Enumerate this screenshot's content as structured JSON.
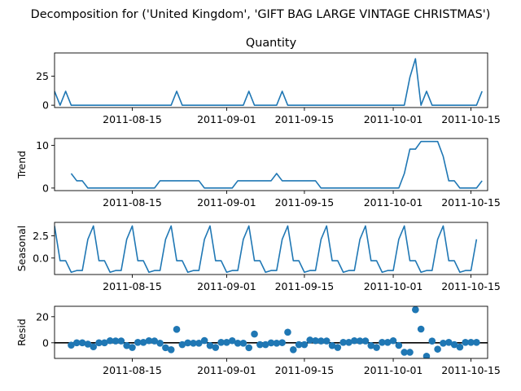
{
  "figure_title": "Decomposition for ('United Kingdom', 'GIFT BAG LARGE VINTAGE CHRISTMAS')",
  "colors": {
    "series": "#1f77b4",
    "axis": "#000000",
    "zero_line": "#000000"
  },
  "chart_data": [
    {
      "id": "observed",
      "type": "line",
      "title": "Quantity",
      "ylabel": "",
      "x_start": "2011-08-01",
      "xlim": [
        "2011-08-01",
        "2011-10-18"
      ],
      "ylim": [
        -2,
        45
      ],
      "yticks": [
        0,
        25
      ],
      "ytick_labels": [
        "0",
        "25"
      ],
      "xtick_labels": [
        "2011-08-15",
        "2011-09-01",
        "2011-09-15",
        "2011-10-01",
        "2011-10-15"
      ],
      "xtick_dates": [
        "2011-08-15",
        "2011-09-01",
        "2011-09-15",
        "2011-10-01",
        "2011-10-15"
      ],
      "values": [
        12,
        0,
        12,
        0,
        0,
        0,
        0,
        0,
        0,
        0,
        0,
        0,
        0,
        0,
        0,
        0,
        0,
        0,
        0,
        0,
        0,
        0,
        12,
        0,
        0,
        0,
        0,
        0,
        0,
        0,
        0,
        0,
        0,
        0,
        0,
        12,
        0,
        0,
        0,
        0,
        0,
        12,
        0,
        0,
        0,
        0,
        0,
        0,
        0,
        0,
        0,
        0,
        0,
        0,
        0,
        0,
        0,
        0,
        0,
        0,
        0,
        0,
        0,
        0,
        24,
        40,
        0,
        12,
        0,
        0,
        0,
        0,
        0,
        0,
        0,
        0,
        0,
        12
      ]
    },
    {
      "id": "trend",
      "type": "line",
      "title": "",
      "ylabel": "Trend",
      "x_start": "2011-08-01",
      "xlim": [
        "2011-08-01",
        "2011-10-18"
      ],
      "ylim": [
        -0.6,
        11.6
      ],
      "yticks": [
        0,
        10
      ],
      "ytick_labels": [
        "0",
        "10"
      ],
      "xtick_labels": [
        "2011-08-15",
        "2011-09-01",
        "2011-09-15",
        "2011-10-01",
        "2011-10-15"
      ],
      "xtick_dates": [
        "2011-08-15",
        "2011-09-01",
        "2011-09-15",
        "2011-10-01",
        "2011-10-15"
      ],
      "values": [
        null,
        null,
        null,
        3.4,
        1.7,
        1.7,
        0,
        0,
        0,
        0,
        0,
        0,
        0,
        0,
        0,
        0,
        0,
        0,
        0,
        1.7,
        1.7,
        1.7,
        1.7,
        1.7,
        1.7,
        1.7,
        1.7,
        0,
        0,
        0,
        0,
        0,
        0,
        1.7,
        1.7,
        1.7,
        1.7,
        1.7,
        1.7,
        1.7,
        3.4,
        1.7,
        1.7,
        1.7,
        1.7,
        1.7,
        1.7,
        1.7,
        0,
        0,
        0,
        0,
        0,
        0,
        0,
        0,
        0,
        0,
        0,
        0,
        0,
        0,
        0,
        3.4,
        9.1,
        9.1,
        10.9,
        10.9,
        10.9,
        10.9,
        7.4,
        1.7,
        1.7,
        0,
        0,
        0,
        0,
        1.7,
        null,
        null,
        null
      ]
    },
    {
      "id": "seasonal",
      "type": "line",
      "title": "",
      "ylabel": "Seasonal",
      "x_start": "2011-08-01",
      "xlim": [
        "2011-08-01",
        "2011-10-18"
      ],
      "ylim": [
        -1.85,
        4.0
      ],
      "yticks": [
        0.0,
        2.5
      ],
      "ytick_labels": [
        "0.0",
        "2.5"
      ],
      "xtick_labels": [
        "2011-08-15",
        "2011-09-01",
        "2011-09-15",
        "2011-10-01",
        "2011-10-15"
      ],
      "xtick_dates": [
        "2011-08-15",
        "2011-09-01",
        "2011-09-15",
        "2011-10-01",
        "2011-10-15"
      ],
      "pattern": [
        2.1,
        3.6,
        -0.3,
        -0.3,
        -1.6,
        -1.4,
        -1.4
      ],
      "values": [
        3.6,
        -0.3,
        -0.3,
        -1.6,
        -1.4,
        -1.4,
        2.1,
        3.6,
        -0.3,
        -0.3,
        -1.6,
        -1.4,
        -1.4,
        2.1,
        3.6,
        -0.3,
        -0.3,
        -1.6,
        -1.4,
        -1.4,
        2.1,
        3.6,
        -0.3,
        -0.3,
        -1.6,
        -1.4,
        -1.4,
        2.1,
        3.6,
        -0.3,
        -0.3,
        -1.6,
        -1.4,
        -1.4,
        2.1,
        3.6,
        -0.3,
        -0.3,
        -1.6,
        -1.4,
        -1.4,
        2.1,
        3.6,
        -0.3,
        -0.3,
        -1.6,
        -1.4,
        -1.4,
        2.1,
        3.6,
        -0.3,
        -0.3,
        -1.6,
        -1.4,
        -1.4,
        2.1,
        3.6,
        -0.3,
        -0.3,
        -1.6,
        -1.4,
        -1.4,
        2.1,
        3.6,
        -0.3,
        -0.3,
        -1.6,
        -1.4,
        -1.4,
        2.1,
        3.6,
        -0.3,
        -0.3,
        -1.6,
        -1.4,
        -1.4,
        2.1
      ]
    },
    {
      "id": "resid",
      "type": "scatter",
      "title": "",
      "ylabel": "Resid",
      "x_start": "2011-08-01",
      "xlim": [
        "2011-08-01",
        "2011-10-18"
      ],
      "ylim": [
        -12,
        28
      ],
      "yticks": [
        0,
        20
      ],
      "ytick_labels": [
        "0",
        "20"
      ],
      "zero_line": true,
      "xtick_labels": [
        "2011-08-15",
        "2011-09-01",
        "2011-09-15",
        "2011-10-01",
        "2011-10-15"
      ],
      "xtick_dates": [
        "2011-08-15",
        "2011-09-01",
        "2011-09-15",
        "2011-10-01",
        "2011-10-15"
      ],
      "values": [
        null,
        null,
        null,
        -1.8,
        0,
        0,
        -1.0,
        -3.1,
        0,
        0,
        1.6,
        1.4,
        1.4,
        -2.1,
        -3.6,
        0.3,
        0.3,
        1.6,
        1.4,
        -0.3,
        -3.8,
        -5.3,
        10.3,
        -1.4,
        -0.1,
        -0.3,
        -0.3,
        1.7,
        -2.1,
        -3.6,
        0.3,
        0.3,
        1.6,
        -0.3,
        -0.3,
        -3.8,
        6.7,
        -1.4,
        -1.4,
        -0.1,
        -0.3,
        0.1,
        8.1,
        -5.3,
        -1.4,
        -1.4,
        2.1,
        1.6,
        1.4,
        1.4,
        -2.1,
        -3.6,
        0.3,
        0.3,
        1.6,
        1.4,
        1.4,
        -2.1,
        -3.6,
        0.3,
        0.3,
        1.6,
        -2.0,
        -7.3,
        -7.3,
        25.4,
        10.5,
        -10.3,
        1.3,
        -4.9,
        -0.3,
        0.3,
        -1.4,
        -3.3,
        0.3,
        0.3,
        0.3,
        null,
        null,
        null
      ]
    }
  ]
}
